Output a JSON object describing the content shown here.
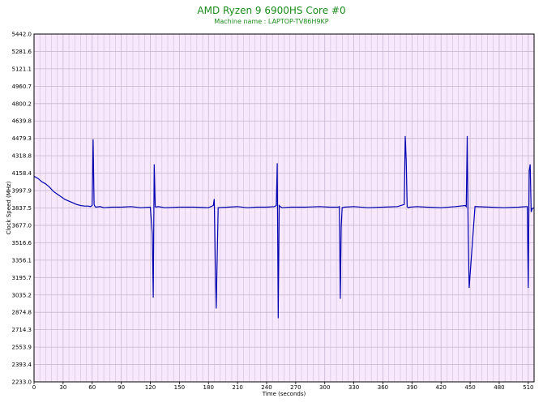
{
  "chart_data": {
    "type": "line",
    "title": "AMD Ryzen 9 6900HS Core #0",
    "subtitle": "Machine name : LAPTOP-TV86H9KP",
    "xlabel": "Time (seconds)",
    "ylabel": "Clock Speed (MHz)",
    "xlim": [
      0,
      516
    ],
    "ylim": [
      2233.0,
      5442.0
    ],
    "grid": true,
    "x_ticks": [
      "0",
      "30",
      "60",
      "90",
      "120",
      "150",
      "180",
      "210",
      "240",
      "270",
      "300",
      "330",
      "360",
      "390",
      "420",
      "450",
      "480",
      "510"
    ],
    "y_ticks": [
      "2233.0",
      "2393.4",
      "2553.9",
      "2714.3",
      "2874.8",
      "3035.2",
      "3195.7",
      "3356.1",
      "3516.6",
      "3677.0",
      "3837.5",
      "3997.9",
      "4158.4",
      "4318.8",
      "4479.3",
      "4639.8",
      "4800.2",
      "4960.7",
      "5121.1",
      "5281.6",
      "5442.0"
    ],
    "colors": {
      "plot_bg": "#f8e8fc",
      "grid": "#c8b8d0",
      "line": "#0000b0",
      "title": "#1a8c1a"
    },
    "series": [
      {
        "x": [
          0,
          4,
          8,
          12,
          16,
          20,
          24,
          28,
          32,
          36,
          40,
          44,
          48,
          52,
          56,
          58,
          60,
          61,
          62,
          63,
          64,
          68,
          72,
          80,
          90,
          100,
          110,
          120,
          122,
          123,
          124,
          125,
          126,
          128,
          135,
          150,
          165,
          180,
          185,
          186,
          187,
          188,
          190,
          200,
          210,
          220,
          230,
          240,
          248,
          250,
          251,
          252,
          253,
          254,
          256,
          265,
          280,
          295,
          305,
          314,
          315,
          316,
          317,
          318,
          320,
          330,
          345,
          360,
          375,
          382,
          383,
          384,
          385,
          386,
          388,
          395,
          405,
          420,
          435,
          445,
          446,
          447,
          448,
          449,
          455,
          470,
          485,
          500,
          508,
          509,
          510,
          511,
          512,
          513,
          514,
          516
        ],
        "y": [
          4130,
          4110,
          4080,
          4060,
          4030,
          3990,
          3965,
          3940,
          3915,
          3900,
          3885,
          3870,
          3860,
          3855,
          3855,
          3850,
          3860,
          4470,
          3870,
          3850,
          3845,
          3850,
          3840,
          3845,
          3845,
          3850,
          3840,
          3845,
          3600,
          3010,
          4240,
          3850,
          3845,
          3850,
          3840,
          3845,
          3845,
          3840,
          3860,
          3920,
          3320,
          2910,
          3840,
          3845,
          3850,
          3840,
          3845,
          3845,
          3850,
          3860,
          4250,
          2820,
          3860,
          3850,
          3840,
          3845,
          3845,
          3850,
          3845,
          3845,
          3850,
          3000,
          3660,
          3840,
          3845,
          3850,
          3840,
          3845,
          3850,
          3870,
          4500,
          4280,
          3850,
          3840,
          3845,
          3850,
          3845,
          3840,
          3850,
          3860,
          3850,
          4500,
          3600,
          3100,
          3850,
          3845,
          3840,
          3845,
          3850,
          3850,
          3100,
          4180,
          4240,
          3800,
          3830,
          3840
        ]
      }
    ]
  }
}
